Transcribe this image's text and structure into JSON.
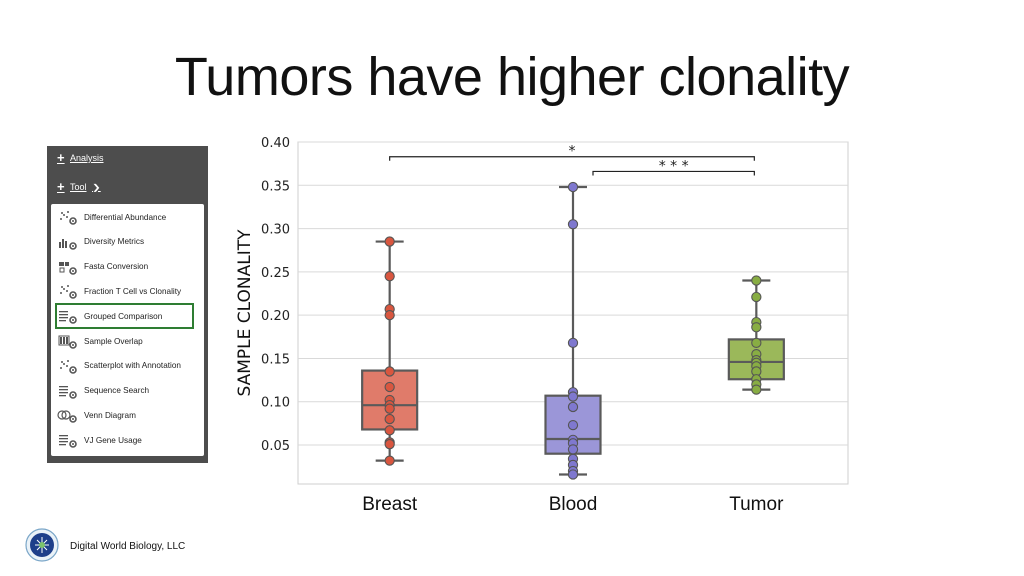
{
  "slide": {
    "title": "Tumors have higher clonality",
    "footer": "Digital World Biology, LLC"
  },
  "panel": {
    "analysis_label": "Analysis",
    "tool_label": "Tool",
    "items": [
      {
        "label": "Differential Abundance",
        "icon": "differential-abundance-icon"
      },
      {
        "label": "Diversity Metrics",
        "icon": "diversity-metrics-icon"
      },
      {
        "label": "Fasta Conversion",
        "icon": "fasta-conversion-icon"
      },
      {
        "label": "Fraction T Cell vs Clonality",
        "icon": "fraction-tcell-icon"
      },
      {
        "label": "Grouped Comparison",
        "icon": "grouped-comparison-icon",
        "selected": true
      },
      {
        "label": "Sample Overlap",
        "icon": "sample-overlap-icon"
      },
      {
        "label": "Scatterplot with Annotation",
        "icon": "scatterplot-icon"
      },
      {
        "label": "Sequence Search",
        "icon": "sequence-search-icon"
      },
      {
        "label": "Venn Diagram",
        "icon": "venn-diagram-icon"
      },
      {
        "label": "VJ Gene Usage",
        "icon": "vj-gene-usage-icon"
      }
    ],
    "colors": {
      "panel_bg": "#4d4d4d",
      "selected_outline": "#2e7d32"
    }
  },
  "chart_data": {
    "type": "box",
    "title": "",
    "xlabel": "",
    "ylabel": "SAMPLE CLONALITY",
    "ylim": [
      0.005,
      0.4
    ],
    "yticks": [
      0.05,
      0.1,
      0.15,
      0.2,
      0.25,
      0.3,
      0.35,
      0.4
    ],
    "ytick_labels": [
      "0.05",
      "0.10",
      "0.15",
      "0.20",
      "0.25",
      "0.30",
      "0.35",
      "0.40"
    ],
    "grid": "horizontal",
    "categories": [
      "Breast",
      "Blood",
      "Tumor"
    ],
    "series": [
      {
        "name": "Breast",
        "color": "#e07b6a",
        "point_color": "#d9563f",
        "box": {
          "whisker_low": 0.032,
          "q1": 0.068,
          "median": 0.096,
          "q3": 0.136,
          "whisker_high": 0.285
        },
        "points": [
          0.285,
          0.245,
          0.207,
          0.2,
          0.135,
          0.117,
          0.102,
          0.096,
          0.092,
          0.08,
          0.067,
          0.053,
          0.051,
          0.032
        ]
      },
      {
        "name": "Blood",
        "color": "#9b96d8",
        "point_color": "#7f78cf",
        "box": {
          "whisker_low": 0.016,
          "q1": 0.04,
          "median": 0.057,
          "q3": 0.107,
          "whisker_high": 0.348
        },
        "points": [
          0.348,
          0.305,
          0.168,
          0.111,
          0.106,
          0.094,
          0.073,
          0.056,
          0.052,
          0.045,
          0.034,
          0.027,
          0.02,
          0.016
        ]
      },
      {
        "name": "Tumor",
        "color": "#9bb85a",
        "point_color": "#88ad43",
        "box": {
          "whisker_low": 0.114,
          "q1": 0.126,
          "median": 0.146,
          "q3": 0.172,
          "whisker_high": 0.24
        },
        "points": [
          0.24,
          0.221,
          0.192,
          0.186,
          0.168,
          0.155,
          0.148,
          0.145,
          0.141,
          0.135,
          0.126,
          0.12,
          0.114
        ]
      }
    ],
    "significance": [
      {
        "from": "Breast",
        "to": "Tumor",
        "label": "*",
        "y": 0.383
      },
      {
        "from": "Blood",
        "to": "Tumor",
        "label": "* * *",
        "y": 0.366
      }
    ]
  }
}
